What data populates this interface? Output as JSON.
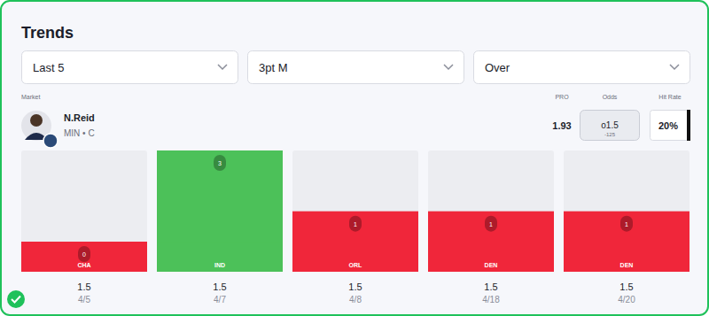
{
  "page": {
    "title": "Trends",
    "filters": [
      "Last 5",
      "3pt M",
      "Over"
    ],
    "market_label": "Market",
    "player": "N.Reid",
    "team_pos": "MIN • C",
    "pro_label": "PRO",
    "pro": "1.93",
    "odds_label": "Odds",
    "odds_line": "o1.5",
    "odds_price": "-125",
    "hit_rate_label": "Hit Rate",
    "hit_rate": "20%"
  },
  "chart_data": {
    "type": "bar",
    "categories": [
      "CHA",
      "IND",
      "ORL",
      "DEN",
      "DEN"
    ],
    "values": [
      0,
      3,
      1,
      1,
      1
    ],
    "colors": [
      "#f0263a",
      "#4cc159",
      "#f0263a",
      "#f0263a",
      "#f0263a"
    ],
    "lines": [
      1.5,
      1.5,
      1.5,
      1.5,
      1.5
    ],
    "dates": [
      "4/5",
      "4/7",
      "4/8",
      "4/18",
      "4/20"
    ],
    "ylim": [
      0,
      3
    ],
    "data_labels": true,
    "tick_labels": "x"
  }
}
